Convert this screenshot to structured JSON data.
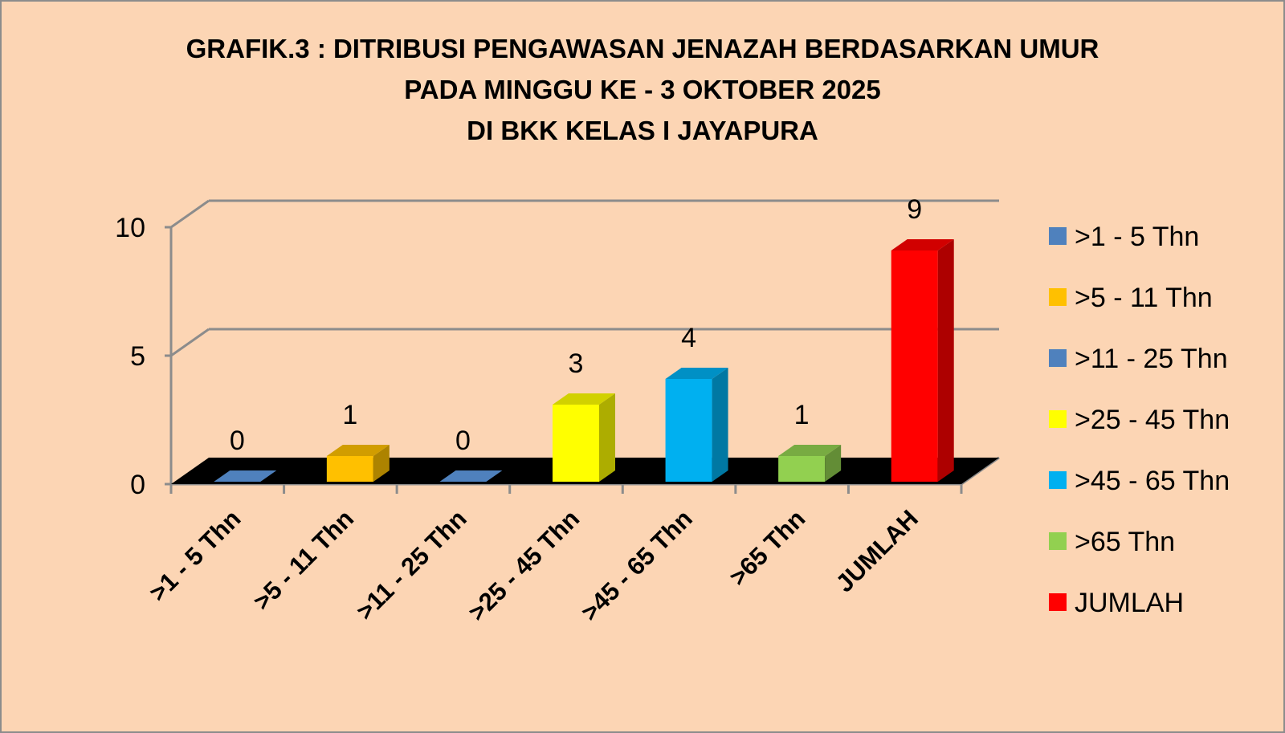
{
  "chart_data": {
    "type": "bar",
    "title": [
      "GRAFIK.3 : DITRIBUSI PENGAWASAN JENAZAH BERDASARKAN UMUR",
      "PADA MINGGU KE - 3 OKTOBER 2025",
      "DI BKK KELAS I JAYAPURA"
    ],
    "categories": [
      ">1 - 5 Thn",
      ">5 - 11 Thn",
      ">11 - 25 Thn",
      ">25 - 45 Thn",
      ">45 - 65 Thn",
      ">65 Thn",
      "JUMLAH"
    ],
    "values": [
      0,
      1,
      0,
      3,
      4,
      1,
      9
    ],
    "data_labels": [
      "0",
      "1",
      "0",
      "3",
      "4",
      "1",
      "9"
    ],
    "series_colors": [
      "#4F81BD",
      "#FFC000",
      "#4F81BD",
      "#FFFF00",
      "#00B0F0",
      "#92D050",
      "#FF0000"
    ],
    "ylim": [
      0,
      10
    ],
    "yticks": [
      0,
      5,
      10
    ],
    "ytick_labels": [
      "0",
      "5",
      "10"
    ],
    "xlabel": "",
    "ylabel": "",
    "grid": true,
    "floor_color": "#000000",
    "background_color": "#FCD5B4",
    "legend": {
      "position": "right",
      "entries": [
        ">1 - 5 Thn",
        ">5 - 11 Thn",
        ">11 - 25 Thn",
        ">25 - 45 Thn",
        ">45 - 65 Thn",
        ">65 Thn",
        "JUMLAH"
      ]
    }
  }
}
